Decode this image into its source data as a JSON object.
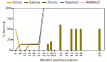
{
  "chart_data": {
    "type": "line",
    "xlabel": "Months postinoculation",
    "ylabel": "% Positive",
    "xlim": [
      4.5,
      63
    ],
    "ylim": [
      0,
      100
    ],
    "xticks": [
      6,
      9,
      12,
      15,
      18,
      21,
      24,
      27,
      29,
      31,
      35,
      39,
      42,
      45,
      48,
      60
    ],
    "yticks": [
      0,
      25,
      50,
      75,
      100
    ],
    "legend": "top",
    "series": [
      {
        "type": "bar",
        "color": "#8B7000",
        "x": [
          27,
          29,
          35,
          42,
          45,
          48,
          60
        ],
        "values": [
          14,
          20,
          60,
          50,
          50,
          50,
          50
        ]
      },
      {
        "name": "Urine",
        "type": "line",
        "color": "#C8A000",
        "x": [
          6,
          9,
          12,
          15,
          18,
          21,
          24
        ],
        "values": [
          50,
          0,
          0,
          0,
          0,
          0,
          100
        ]
      },
      {
        "name": "Saliva",
        "type": "line",
        "color": "#8B6010",
        "x": [
          6,
          9,
          12,
          15,
          18,
          21,
          24
        ],
        "values": [
          0,
          0,
          0,
          14,
          14,
          14,
          100
        ]
      },
      {
        "name": "Feces",
        "type": "line",
        "color": "#6B4C10",
        "x": [
          6,
          9,
          12,
          15,
          18,
          21,
          24
        ],
        "values": [
          0,
          14,
          14,
          14,
          14,
          14,
          100
        ]
      },
      {
        "name": "Fawned",
        "type": "line",
        "color": "#5B6EBE",
        "x": [
          6,
          9,
          12,
          15,
          18,
          21,
          24,
          60
        ],
        "values": [
          0,
          0,
          0,
          0,
          0,
          0,
          100,
          100
        ]
      },
      {
        "name": "RAMALT",
        "type": "line",
        "color": "#C8B8D8",
        "x": [
          6,
          9,
          12,
          15,
          18,
          21,
          24,
          60
        ],
        "values": [
          0,
          0,
          0,
          0,
          0,
          0,
          100,
          100
        ]
      }
    ]
  }
}
